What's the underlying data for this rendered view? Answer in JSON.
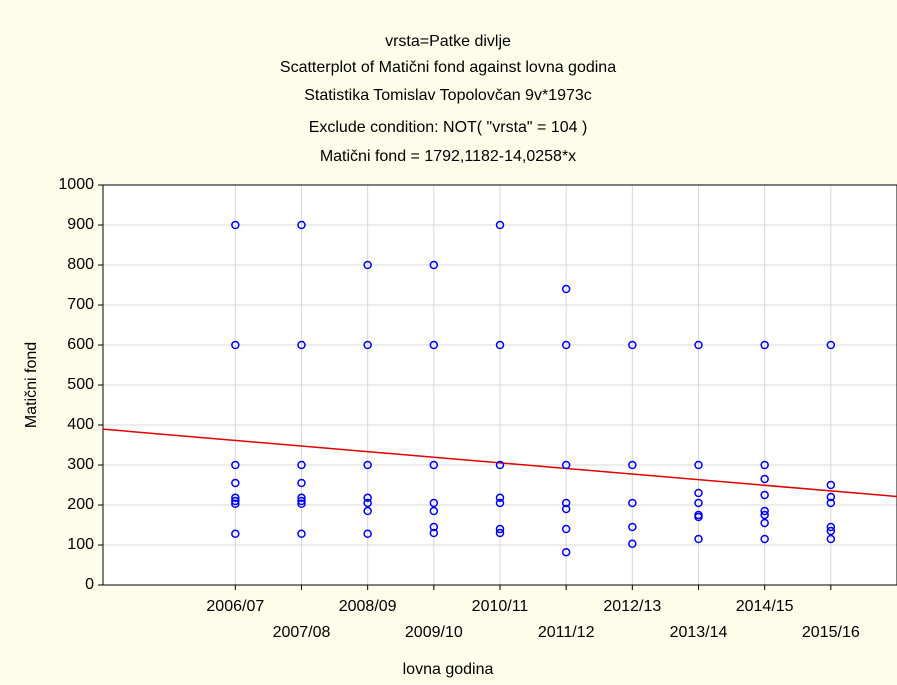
{
  "chart_data": {
    "type": "scatter",
    "titles": [
      "vrsta=Patke divlje",
      "Scatterplot of Matični fond against lovna godina",
      "Statistika Tomislav Topolovčan 9v*1973c",
      "Exclude condition: NOT( \"vrsta\" = 104 )",
      "Matični fond = 1792,1182-14,0258*x"
    ],
    "x_label": "lovna godina",
    "y_label": "Matični fond",
    "xlim": [
      100,
      112
    ],
    "xticks": [
      {
        "value": 102,
        "label": "2006/07"
      },
      {
        "value": 103,
        "label": "2007/08"
      },
      {
        "value": 104,
        "label": "2008/09"
      },
      {
        "value": 105,
        "label": "2009/10"
      },
      {
        "value": 106,
        "label": "2010/11"
      },
      {
        "value": 107,
        "label": "2011/12"
      },
      {
        "value": 108,
        "label": "2012/13"
      },
      {
        "value": 109,
        "label": "2013/14"
      },
      {
        "value": 110,
        "label": "2014/15"
      },
      {
        "value": 111,
        "label": "2015/16"
      }
    ],
    "ylim": [
      0,
      1000
    ],
    "yticks": [
      0,
      100,
      200,
      300,
      400,
      500,
      600,
      700,
      800,
      900,
      1000
    ],
    "grid": true,
    "point_color": "#0000ee",
    "fit": {
      "intercept": 1792.1182,
      "slope": -14.0258,
      "color": "#e00000"
    },
    "x": [
      102,
      102,
      102,
      102,
      102,
      102,
      102,
      102,
      103,
      103,
      103,
      103,
      103,
      103,
      103,
      103,
      104,
      104,
      104,
      104,
      104,
      104,
      104,
      105,
      105,
      105,
      105,
      105,
      105,
      105,
      106,
      106,
      106,
      106,
      106,
      106,
      106,
      107,
      107,
      107,
      107,
      107,
      107,
      107,
      108,
      108,
      108,
      108,
      108,
      109,
      109,
      109,
      109,
      109,
      109,
      109,
      110,
      110,
      110,
      110,
      110,
      110,
      110,
      110,
      111,
      111,
      111,
      111,
      111,
      111,
      111
    ],
    "y": [
      900,
      600,
      300,
      255,
      218,
      210,
      203,
      128,
      900,
      600,
      300,
      255,
      218,
      210,
      203,
      128,
      800,
      600,
      300,
      218,
      205,
      185,
      128,
      800,
      600,
      300,
      205,
      185,
      145,
      130,
      900,
      600,
      300,
      218,
      205,
      140,
      130,
      740,
      600,
      300,
      205,
      190,
      140,
      82,
      600,
      300,
      205,
      145,
      103,
      600,
      300,
      230,
      205,
      175,
      170,
      115,
      600,
      300,
      265,
      225,
      185,
      175,
      155,
      115,
      600,
      250,
      220,
      205,
      145,
      135,
      115
    ]
  }
}
